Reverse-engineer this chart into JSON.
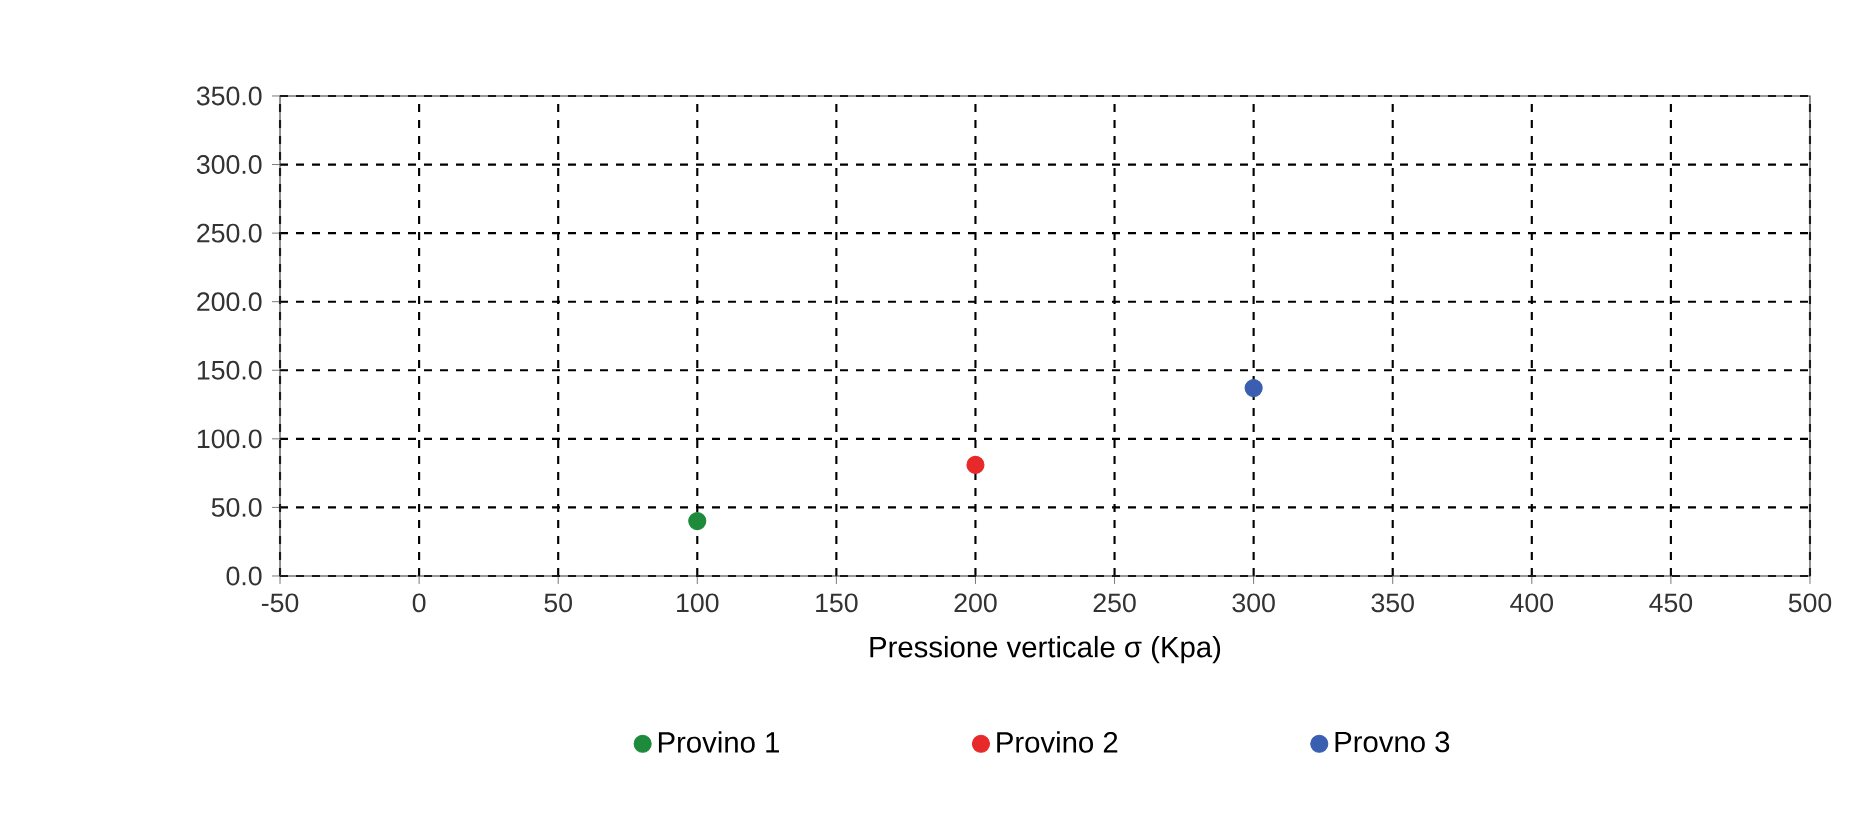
{
  "chart_data": {
    "type": "scatter",
    "xlabel": "Pressione verticale  σ  (Kpa)",
    "series": [
      {
        "name": "Provino 1",
        "color": "#1e8a3c",
        "x": [
          100
        ],
        "values": [
          40
        ]
      },
      {
        "name": "Provino 2",
        "color": "#e8292b",
        "x": [
          200
        ],
        "values": [
          81
        ]
      },
      {
        "name": "Provno 3",
        "color": "#3a5fb0",
        "x": [
          300
        ],
        "values": [
          137
        ]
      }
    ],
    "xlim": [
      -50,
      500
    ],
    "xticks": [
      -50,
      0,
      50,
      100,
      150,
      200,
      250,
      300,
      350,
      400,
      450,
      500
    ],
    "ylim": [
      0,
      350
    ],
    "yticks": [
      {
        "value": 0,
        "label": "0.0"
      },
      {
        "value": 50,
        "label": "50.0"
      },
      {
        "value": 100,
        "label": "100.0"
      },
      {
        "value": 150,
        "label": "150.0"
      },
      {
        "value": 200,
        "label": "200.0"
      },
      {
        "value": 250,
        "label": "250.0"
      },
      {
        "value": 300,
        "label": "300.0"
      },
      {
        "value": 350,
        "label": "350.0"
      }
    ],
    "grid": true,
    "legend": "bottom",
    "marker": "circle"
  }
}
